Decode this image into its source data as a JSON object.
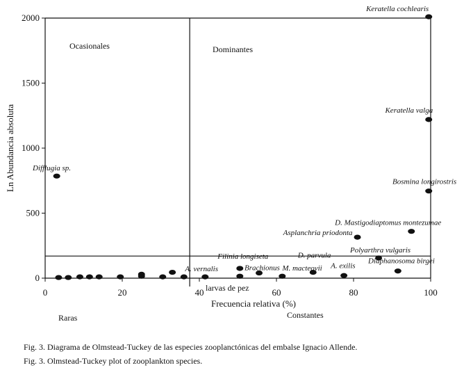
{
  "chart_data": {
    "type": "scatter",
    "xlabel": "Frecuencia relativa (%)",
    "ylabel": "Ln Abundancia absoluta",
    "xlim": [
      0,
      100
    ],
    "ylim": [
      0,
      2000
    ],
    "x_ticks": [
      "0",
      "20",
      "40",
      "60",
      "80",
      "100"
    ],
    "y_ticks": [
      "0",
      "500",
      "1000",
      "1500",
      "2000"
    ],
    "x_divider": 37.5,
    "y_divider": 170,
    "quadrants": {
      "top_left": "Ocasionales",
      "top_right": "Dominantes",
      "bottom_left": "Raras",
      "bottom_right": "Constantes"
    },
    "points": [
      {
        "x": 99.5,
        "y": 2010,
        "label": "Keratella cochlearis"
      },
      {
        "x": 99.5,
        "y": 1220,
        "label": "Keratella valga"
      },
      {
        "x": 3,
        "y": 785,
        "label": "Difflugia sp."
      },
      {
        "x": 99.5,
        "y": 670,
        "label": "Bosmina longirostris"
      },
      {
        "x": 95,
        "y": 360,
        "label": "D. Mastigodiaptomus montezumae"
      },
      {
        "x": 81,
        "y": 315,
        "label": "Asplanchria priodonta"
      },
      {
        "x": 86.5,
        "y": 155,
        "label": "Polyarthra vulgaris"
      },
      {
        "x": 91.5,
        "y": 55,
        "label": "Diaphanosoma birgei"
      },
      {
        "x": 50.5,
        "y": 75,
        "label": "Filinia longiseta"
      },
      {
        "x": 55.5,
        "y": 40,
        "label": "Brachionus"
      },
      {
        "x": 61.5,
        "y": 15,
        "label": "M. macteovii"
      },
      {
        "x": 69.5,
        "y": 45,
        "label": "D. parvula"
      },
      {
        "x": 77.5,
        "y": 20,
        "label": "A. exilis"
      },
      {
        "x": 41.5,
        "y": 10,
        "label": "A. vernalis"
      },
      {
        "x": 3.5,
        "y": 5,
        "label": ""
      },
      {
        "x": 6,
        "y": 5,
        "label": ""
      },
      {
        "x": 9,
        "y": 10,
        "label": ""
      },
      {
        "x": 11.5,
        "y": 10,
        "label": ""
      },
      {
        "x": 14,
        "y": 10,
        "label": ""
      },
      {
        "x": 19.5,
        "y": 10,
        "label": ""
      },
      {
        "x": 25,
        "y": 15,
        "label": ""
      },
      {
        "x": 25,
        "y": 30,
        "label": ""
      },
      {
        "x": 30.5,
        "y": 10,
        "label": ""
      },
      {
        "x": 33,
        "y": 45,
        "label": ""
      },
      {
        "x": 36,
        "y": 10,
        "label": ""
      },
      {
        "x": 50.5,
        "y": 15,
        "label": ""
      }
    ],
    "annotations": [
      "larvas de pez"
    ]
  },
  "caption": {
    "line1": "Fig. 3. Diagrama de Olmstead-Tuckey de las especies zooplanctónicas del embalse Ignacio Allende.",
    "line2": "Fig. 3. Olmstead-Tuckey plot of zooplankton species."
  }
}
